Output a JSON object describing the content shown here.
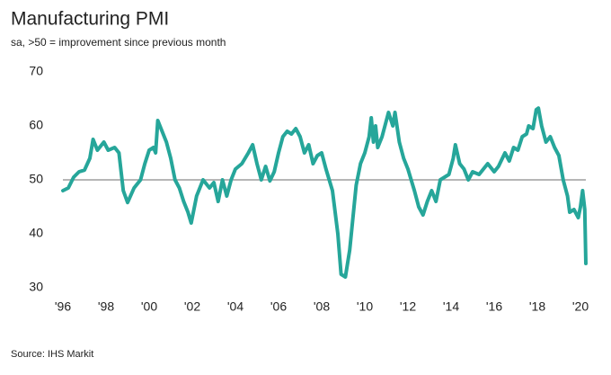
{
  "chart_data": {
    "type": "line",
    "title": "Manufacturing PMI",
    "subtitle": "sa, >50 = improvement since previous month",
    "source": "Source: IHS Markit",
    "reference_line": 50,
    "xlim": [
      1996,
      2020.5
    ],
    "ylim": [
      30,
      70
    ],
    "yticks": [
      30,
      40,
      50,
      60,
      70
    ],
    "xticks": [
      {
        "value": 1996,
        "label": "'96"
      },
      {
        "value": 1998,
        "label": "'98"
      },
      {
        "value": 2000,
        "label": "'00"
      },
      {
        "value": 2002,
        "label": "'02"
      },
      {
        "value": 2004,
        "label": "'04"
      },
      {
        "value": 2006,
        "label": "'06"
      },
      {
        "value": 2008,
        "label": "'08"
      },
      {
        "value": 2010,
        "label": "'10"
      },
      {
        "value": 2012,
        "label": "'12"
      },
      {
        "value": 2014,
        "label": "'14"
      },
      {
        "value": 2016,
        "label": "'16"
      },
      {
        "value": 2018,
        "label": "'18"
      },
      {
        "value": 2020,
        "label": "'20"
      }
    ],
    "x": [
      1996.0,
      1996.25,
      1996.5,
      1996.75,
      1997.0,
      1997.25,
      1997.4,
      1997.6,
      1997.9,
      1998.1,
      1998.4,
      1998.6,
      1998.8,
      1999.0,
      1999.3,
      1999.6,
      1999.8,
      2000.0,
      2000.2,
      2000.3,
      2000.4,
      2000.6,
      2000.8,
      2001.0,
      2001.2,
      2001.4,
      2001.6,
      2001.8,
      2001.95,
      2002.2,
      2002.5,
      2002.8,
      2003.0,
      2003.2,
      2003.4,
      2003.6,
      2003.8,
      2004.0,
      2004.3,
      2004.6,
      2004.8,
      2005.0,
      2005.2,
      2005.4,
      2005.6,
      2005.8,
      2006.0,
      2006.2,
      2006.4,
      2006.6,
      2006.8,
      2007.0,
      2007.2,
      2007.4,
      2007.6,
      2007.8,
      2008.0,
      2008.2,
      2008.5,
      2008.75,
      2008.9,
      2009.1,
      2009.3,
      2009.5,
      2009.6,
      2009.8,
      2010.0,
      2010.2,
      2010.3,
      2010.4,
      2010.5,
      2010.6,
      2010.8,
      2011.0,
      2011.1,
      2011.3,
      2011.4,
      2011.6,
      2011.8,
      2012.0,
      2012.3,
      2012.5,
      2012.7,
      2012.9,
      2013.1,
      2013.3,
      2013.5,
      2013.7,
      2013.9,
      2014.1,
      2014.2,
      2014.4,
      2014.6,
      2014.8,
      2015.0,
      2015.3,
      2015.5,
      2015.7,
      2016.0,
      2016.2,
      2016.5,
      2016.7,
      2016.9,
      2017.1,
      2017.3,
      2017.5,
      2017.6,
      2017.8,
      2017.95,
      2018.05,
      2018.2,
      2018.4,
      2018.6,
      2018.8,
      2019.0,
      2019.2,
      2019.4,
      2019.5,
      2019.7,
      2019.9,
      2020.0,
      2020.1,
      2020.2,
      2020.25
    ],
    "series": [
      {
        "name": "Manufacturing PMI",
        "color": "#26a69a",
        "values": [
          48,
          48.5,
          50.5,
          51.5,
          51.8,
          54,
          57.5,
          55.5,
          57,
          55.5,
          56,
          55,
          48,
          45.8,
          48.5,
          50,
          53,
          55.5,
          56,
          55,
          61,
          59,
          57,
          54,
          50,
          48.5,
          46,
          44,
          42,
          47,
          50,
          48.5,
          49.5,
          46,
          50,
          47,
          50,
          52,
          53,
          55,
          56.5,
          53,
          50,
          52.5,
          49.8,
          51.5,
          55,
          58,
          59,
          58.5,
          59.5,
          58,
          55,
          56.5,
          53,
          54.5,
          55,
          52,
          48,
          40,
          32.5,
          32,
          37,
          45,
          49,
          53,
          55,
          58,
          61.5,
          57,
          60,
          56,
          58,
          61,
          62.5,
          60,
          62.5,
          57,
          54,
          52,
          48,
          45,
          43.5,
          46,
          48,
          46,
          50,
          50.5,
          51,
          54,
          56.5,
          53,
          52,
          50,
          51.5,
          51,
          52,
          53,
          51.5,
          52.5,
          55,
          53.5,
          56,
          55.5,
          58,
          58.5,
          60,
          59.5,
          63,
          63.3,
          60,
          57,
          58,
          56,
          54.5,
          50,
          47,
          44,
          44.5,
          43,
          45,
          48,
          44.5,
          34.5
        ]
      }
    ]
  }
}
